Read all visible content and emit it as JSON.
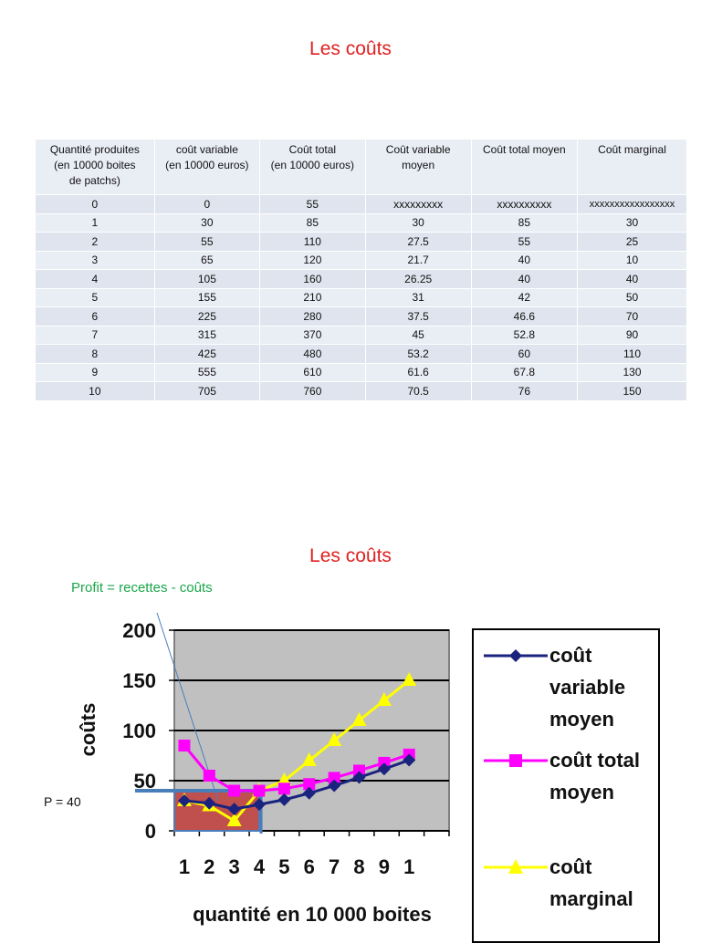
{
  "title_top": "Les coûts",
  "table": {
    "headers": [
      [
        "Quantité produites",
        "(en 10000 boites",
        "de  patchs)"
      ],
      [
        "coût variable",
        "(en 10000 euros)"
      ],
      [
        "Coût total",
        "(en 10000 euros)"
      ],
      [
        "Coût variable",
        "moyen"
      ],
      [
        "Coût total moyen"
      ],
      [
        "Coût marginal"
      ]
    ],
    "rows": [
      [
        "0",
        "0",
        "55",
        "xxxxxxxxx",
        "xxxxxxxxxx",
        "xxxxxxxxxxxxxxxxx"
      ],
      [
        "1",
        "30",
        "85",
        "30",
        "85",
        "30"
      ],
      [
        "2",
        "55",
        "110",
        "27.5",
        "55",
        "25"
      ],
      [
        "3",
        "65",
        "120",
        "21.7",
        "40",
        "10"
      ],
      [
        "4",
        "105",
        "160",
        "26.25",
        "40",
        "40"
      ],
      [
        "5",
        "155",
        "210",
        "31",
        "42",
        "50"
      ],
      [
        "6",
        "225",
        "280",
        "37.5",
        "46.6",
        "70"
      ],
      [
        "7",
        "315",
        "370",
        "45",
        "52.8",
        "90"
      ],
      [
        "8",
        "425",
        "480",
        "53.2",
        "60",
        "110"
      ],
      [
        "9",
        "555",
        "610",
        "61.6",
        "67.8",
        "130"
      ],
      [
        "10",
        "705",
        "760",
        "70.5",
        "76",
        "150"
      ]
    ]
  },
  "title_bottom": "Les coûts",
  "annotations": {
    "profit": "Profit = recettes  - coûts",
    "price": "P = 40"
  },
  "colors": {
    "title": "#e02020",
    "profit_note": "#1aa64a",
    "plot_bg": "#c0c0c0",
    "profit_rect": "#c0504d",
    "price_line": "#4a7ebb"
  },
  "chart_data": {
    "type": "line",
    "title": "Les coûts",
    "xlabel": "quantité en 10 000 boites",
    "ylabel": "coûts",
    "ylim": [
      0,
      200
    ],
    "yticks": [
      "0",
      "50",
      "100",
      "150",
      "200"
    ],
    "categories": [
      "1",
      "2",
      "3",
      "4",
      "5",
      "6",
      "7",
      "8",
      "9",
      "1"
    ],
    "grid": true,
    "legend_position": "right",
    "price_level": 40,
    "series": [
      {
        "name": "coût variable moyen",
        "color": "#1a237e",
        "marker": "diamond",
        "values": [
          30,
          27.5,
          21.7,
          26.25,
          31,
          37.5,
          45,
          53.2,
          61.6,
          70.5
        ]
      },
      {
        "name": "coût total moyen",
        "color": "#ff00ff",
        "marker": "square",
        "values": [
          85,
          55,
          40,
          40,
          42,
          46.6,
          52.8,
          60,
          67.8,
          76
        ]
      },
      {
        "name": "coût marginal",
        "color": "#ffff00",
        "marker": "triangle",
        "values": [
          30,
          25,
          10,
          40,
          50,
          70,
          90,
          110,
          130,
          150
        ]
      }
    ],
    "legend_lines": [
      [
        "coût",
        "variable",
        "moyen"
      ],
      [
        "coût total",
        "moyen"
      ],
      [
        "coût",
        "marginal"
      ]
    ]
  }
}
